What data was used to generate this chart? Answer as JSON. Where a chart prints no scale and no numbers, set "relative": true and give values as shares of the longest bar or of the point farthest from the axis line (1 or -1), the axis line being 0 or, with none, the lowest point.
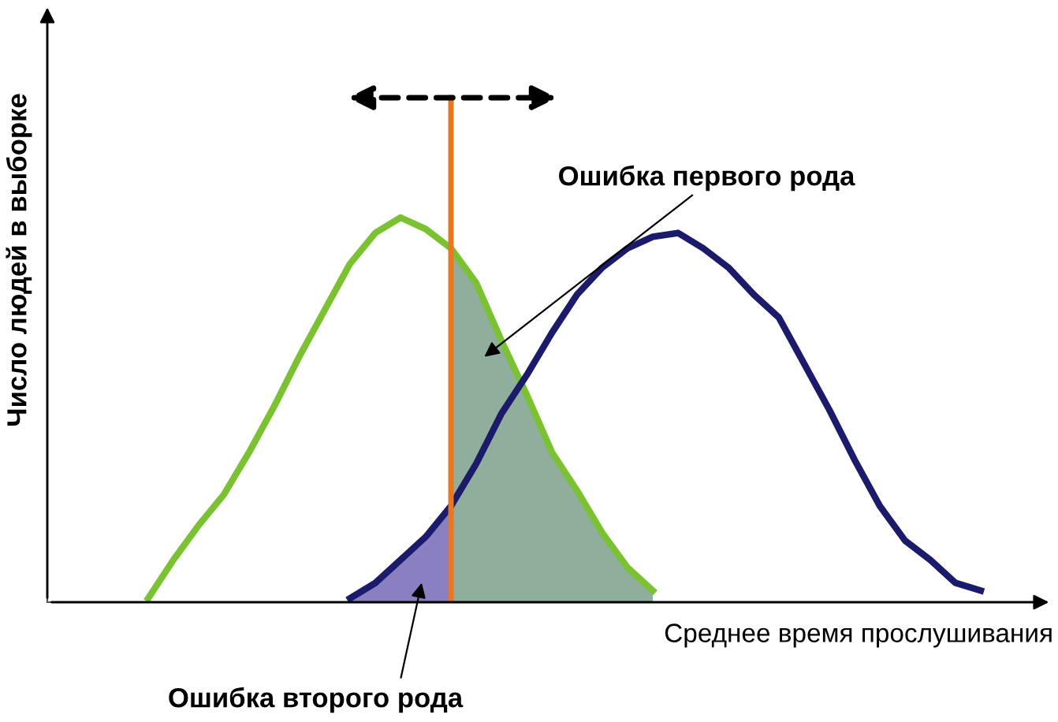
{
  "chart_data": {
    "type": "line",
    "relative": true,
    "ylabel": "Число людей в выборке",
    "xlabel": "Среднее время прослушивания",
    "categories": [
      null,
      null,
      null,
      null,
      null,
      null,
      null,
      null,
      null,
      null,
      null,
      null,
      null,
      null,
      null,
      null,
      null,
      null,
      null,
      null,
      null,
      null,
      null,
      null,
      null,
      null,
      null,
      null,
      null,
      null,
      null,
      null,
      null,
      null,
      null,
      null,
      null,
      null,
      null,
      null
    ],
    "series": [
      {
        "color": "#7ac231",
        "values": [
          null,
          null,
          null,
          null,
          0.01,
          0.11,
          0.2,
          0.28,
          0.39,
          0.51,
          0.64,
          0.76,
          0.88,
          0.96,
          1,
          0.97,
          0.92,
          0.83,
          0.68,
          0.54,
          0.39,
          0.29,
          0.18,
          0.09,
          0.03,
          null,
          null,
          null,
          null,
          null,
          null,
          null,
          null,
          null,
          null,
          null,
          null,
          null,
          null,
          null
        ],
        "lower": [
          null,
          null,
          null,
          null,
          null,
          null,
          null,
          null,
          null,
          null,
          null,
          null,
          null,
          null,
          null,
          null,
          0,
          0,
          0,
          0,
          0,
          0,
          0,
          0,
          0,
          null,
          null,
          null,
          null,
          null,
          null,
          null,
          null,
          null,
          null,
          null,
          null,
          null,
          null,
          null
        ],
        "upper": [
          null,
          null,
          null,
          null,
          null,
          null,
          null,
          null,
          null,
          null,
          null,
          null,
          null,
          null,
          null,
          null,
          0.92,
          0.83,
          0.68,
          0.54,
          0.39,
          0.29,
          0.18,
          0.09,
          0.03,
          null,
          null,
          null,
          null,
          null,
          null,
          null,
          null,
          null,
          null,
          null,
          null,
          null,
          null,
          null
        ]
      },
      {
        "color": "#1c1a6b",
        "values": [
          null,
          null,
          null,
          null,
          null,
          null,
          null,
          null,
          null,
          null,
          null,
          null,
          0.01,
          0.05,
          0.11,
          0.17,
          0.25,
          0.36,
          0.49,
          0.59,
          0.7,
          0.8,
          0.87,
          0.92,
          0.95,
          0.96,
          0.92,
          0.87,
          0.8,
          0.74,
          0.62,
          0.5,
          0.37,
          0.25,
          0.16,
          0.11,
          0.05,
          0.03,
          null,
          null
        ],
        "lower": [
          null,
          null,
          null,
          null,
          null,
          null,
          null,
          null,
          null,
          null,
          null,
          null,
          0,
          0,
          0,
          0,
          0,
          null,
          null,
          null,
          null,
          null,
          null,
          null,
          null,
          null,
          null,
          null,
          null,
          null,
          null,
          null,
          null,
          null,
          null,
          null,
          null,
          null,
          null,
          null
        ],
        "upper": [
          null,
          null,
          null,
          null,
          null,
          null,
          null,
          null,
          null,
          null,
          null,
          null,
          0.01,
          0.05,
          0.11,
          0.17,
          0.25,
          null,
          null,
          null,
          null,
          null,
          null,
          null,
          null,
          null,
          null,
          null,
          null,
          null,
          null,
          null,
          null,
          null,
          null,
          null,
          null,
          null,
          null,
          null
        ]
      }
    ],
    "annotations": [
      "Ошибка первого рода",
      "Ошибка второго рода"
    ],
    "grid": false,
    "legend": false
  }
}
